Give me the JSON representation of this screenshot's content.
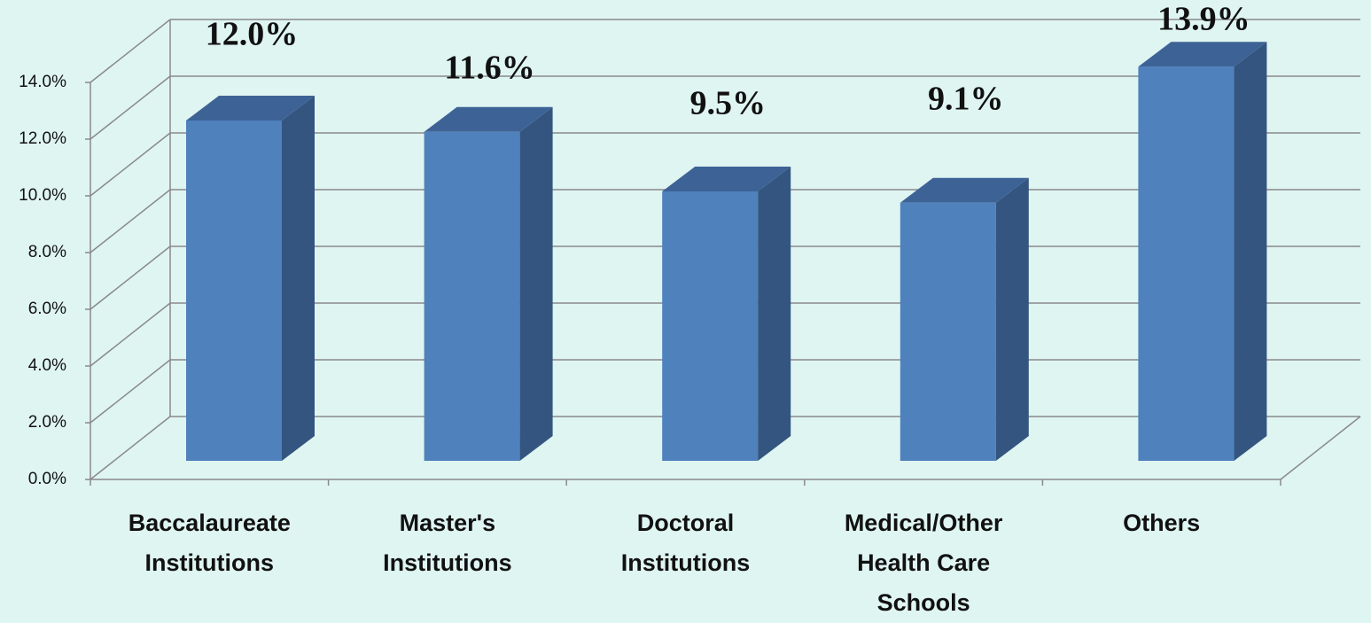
{
  "chart_data": {
    "type": "bar3d",
    "categories": [
      "Baccalaureate Institutions",
      "Master's Institutions",
      "Doctoral Institutions",
      "Medical/Other Health Care Schools",
      "Others"
    ],
    "values": [
      12.0,
      11.6,
      9.5,
      9.1,
      13.9
    ],
    "value_labels": [
      "12.0%",
      "11.6%",
      "9.5%",
      "9.1%",
      "13.9%"
    ],
    "color": "#4f81bd",
    "ylim": [
      0,
      14
    ],
    "yticks": [
      {
        "value": 0,
        "label": "0.0%"
      },
      {
        "value": 2,
        "label": "2.0%"
      },
      {
        "value": 4,
        "label": "4.0%"
      },
      {
        "value": 6,
        "label": "6.0%"
      },
      {
        "value": 8,
        "label": "8.0%"
      },
      {
        "value": 10,
        "label": "10.0%"
      },
      {
        "value": 12,
        "label": "12.0%"
      },
      {
        "value": 14,
        "label": "14.0%"
      }
    ],
    "grid": true
  }
}
